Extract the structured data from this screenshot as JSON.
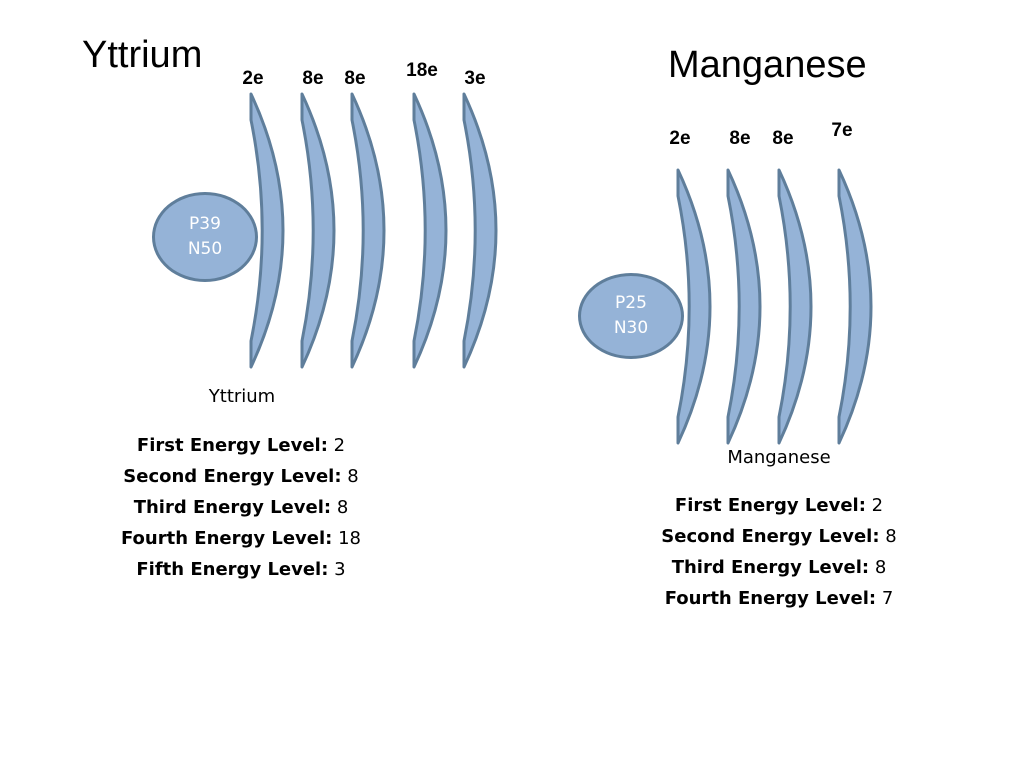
{
  "atoms": [
    {
      "title": "Yttrium",
      "nucleus_line1": "P39",
      "nucleus_line2": "N50",
      "caption": "Yttrium",
      "shells": [
        "2e",
        "8e",
        "8e",
        "18e",
        "3e"
      ],
      "levels": [
        {
          "label": "First Energy Level:",
          "value": "2"
        },
        {
          "label": "Second Energy Level:",
          "value": "8"
        },
        {
          "label": "Third Energy Level:",
          "value": "8"
        },
        {
          "label": "Fourth Energy Level:",
          "value": "18"
        },
        {
          "label": "Fifth Energy Level:",
          "value": "3"
        }
      ]
    },
    {
      "title": "Manganese",
      "nucleus_line1": "P25",
      "nucleus_line2": "N30",
      "caption": "Manganese",
      "shells": [
        "2e",
        "8e",
        "8e",
        "7e"
      ],
      "levels": [
        {
          "label": "First Energy Level:",
          "value": "2"
        },
        {
          "label": "Second Energy Level:",
          "value": "8"
        },
        {
          "label": "Third Energy Level:",
          "value": "8"
        },
        {
          "label": "Fourth Energy Level:",
          "value": "7"
        }
      ]
    }
  ],
  "colors": {
    "shell_fill": "#95b3d7",
    "shell_stroke": "#5f7e9b",
    "nucleus_text": "#ffffff"
  }
}
